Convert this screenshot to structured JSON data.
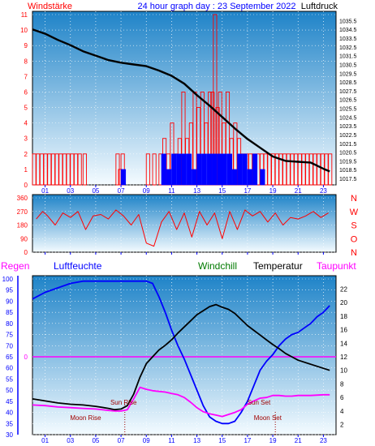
{
  "header": {
    "left_title": "Windstärke",
    "center_title": "24 hour graph day : 23 September 2022",
    "right_title": "Luftdruck"
  },
  "colors": {
    "bg_top": "#1e83c8",
    "bg_bottom": "#f4fbff",
    "wind": "#ff0000",
    "gust": "#0000ff",
    "pressure": "#000000",
    "humidity": "#0000ff",
    "temperature": "#000000",
    "dewpoint": "#ff00ff",
    "windchill": "#007a00",
    "rain": "#ff00ff",
    "axis_red": "#ff0000",
    "axis_blue": "#0000ff",
    "axis_dark": "#000000"
  },
  "chart_data": [
    {
      "type": "bar",
      "title": "",
      "x_ticks": [
        "01",
        "03",
        "05",
        "07",
        "09",
        "11",
        "13",
        "15",
        "17",
        "19",
        "21",
        "23"
      ],
      "left_axis": {
        "label": "Windstärke",
        "ylim": [
          0,
          11
        ],
        "ticks": [
          "0",
          "1",
          "2",
          "3",
          "4",
          "5",
          "6",
          "7",
          "8",
          "9",
          "10",
          "11"
        ]
      },
      "right_axis": {
        "label": "Luftdruck",
        "ylim": [
          1017.5,
          1036
        ],
        "ticks": [
          "1017.5",
          "1018",
          "1018.5",
          "1019",
          "1019.5",
          "1020",
          "1020.5",
          "1021",
          "1021.5",
          "1022",
          "1022.5",
          "1023",
          "1023.5",
          "1024",
          "1024.5",
          "1025",
          "1025.5",
          "1026",
          "1026.5",
          "1027",
          "1027.5",
          "1028",
          "1028.5",
          "1029",
          "1029.5",
          "1030",
          "1030.5",
          "1031",
          "1031.5",
          "1032",
          "1032.5",
          "1033",
          "1033.5",
          "1034",
          "1034.5",
          "1035",
          "1035.5",
          "1036"
        ]
      },
      "series": [
        {
          "name": "Windstärke",
          "kind": "bars",
          "x": [
            0.0,
            0.3,
            0.6,
            0.9,
            1.2,
            1.5,
            1.8,
            2.1,
            2.4,
            2.7,
            3.0,
            3.3,
            3.6,
            4.0,
            6.6,
            6.8,
            7.0,
            9.0,
            9.5,
            10.0,
            10.3,
            10.6,
            10.9,
            11.2,
            11.5,
            11.8,
            12.1,
            12.4,
            12.7,
            13.0,
            13.3,
            13.6,
            13.9,
            14.1,
            14.3,
            14.5,
            14.7,
            15.0,
            15.3,
            15.6,
            15.9,
            16.2,
            16.5,
            16.8,
            17.1,
            17.4,
            17.7,
            18.0,
            18.3,
            18.6,
            18.9,
            19.2,
            19.5,
            19.8,
            20.1,
            20.4,
            20.7,
            21.0,
            21.3,
            21.6,
            21.9,
            22.2,
            22.5,
            22.8,
            23.1,
            23.4
          ],
          "values": [
            2,
            2,
            2,
            2,
            2,
            2,
            2,
            2,
            2,
            2,
            2,
            2,
            2,
            2,
            2,
            1,
            2,
            2,
            2,
            2,
            3,
            2,
            4,
            2,
            3,
            6,
            3,
            4,
            6,
            5,
            6,
            4,
            6,
            6,
            11,
            5,
            6,
            4,
            6,
            3,
            4,
            3,
            2,
            2,
            2,
            2,
            2,
            2,
            2,
            2,
            2,
            2,
            2,
            2,
            2,
            2,
            2,
            2,
            2,
            2,
            2,
            2,
            2,
            2,
            2,
            2
          ]
        },
        {
          "name": "Böen",
          "kind": "bars",
          "x": [
            7.0,
            10.2,
            10.6,
            11.0,
            11.4,
            11.8,
            12.2,
            12.6,
            13.0,
            13.4,
            13.8,
            14.2,
            14.6,
            15.0,
            15.4,
            15.8,
            16.2,
            16.6,
            17.0,
            17.4,
            18.0
          ],
          "values": [
            1,
            2,
            1,
            2,
            2,
            2,
            2,
            1,
            2,
            2,
            2,
            2,
            2,
            2,
            2,
            1,
            2,
            2,
            1,
            2,
            1
          ]
        },
        {
          "name": "Luftdruck",
          "kind": "line",
          "x": [
            0,
            1,
            2,
            3,
            4,
            5,
            6,
            7,
            8,
            9,
            10,
            11,
            12,
            13,
            14,
            15,
            16,
            17,
            18,
            19,
            20,
            21,
            22,
            23,
            23.5
          ],
          "values": [
            1034.5,
            1034.0,
            1033.3,
            1032.7,
            1032.0,
            1031.5,
            1031.0,
            1030.7,
            1030.5,
            1030.3,
            1029.8,
            1029.2,
            1028.3,
            1027.0,
            1025.8,
            1024.5,
            1023.2,
            1022.0,
            1021.0,
            1020.0,
            1019.5,
            1019.4,
            1019.3,
            1018.6,
            1018.3
          ]
        }
      ]
    },
    {
      "type": "line",
      "title": "",
      "x_ticks": [
        "01",
        "03",
        "05",
        "07",
        "09",
        "11",
        "13",
        "15",
        "17",
        "19",
        "21",
        "23"
      ],
      "left_axis": {
        "label": "",
        "ylim": [
          0,
          360
        ],
        "ticks": [
          "0",
          "90",
          "180",
          "270",
          "360"
        ]
      },
      "right_axis_letters": [
        "N",
        "W",
        "S",
        "O",
        "N"
      ],
      "series": [
        {
          "name": "Windrichtung",
          "kind": "line",
          "x": [
            0.3,
            0.8,
            1.2,
            1.8,
            2.4,
            3.0,
            3.6,
            4.2,
            4.8,
            5.4,
            6.0,
            6.6,
            7.2,
            7.8,
            8.4,
            9.0,
            9.6,
            10.2,
            10.8,
            11.4,
            12.0,
            12.6,
            13.2,
            13.8,
            14.4,
            15.0,
            15.6,
            16.2,
            16.8,
            17.4,
            18.0,
            18.6,
            19.2,
            19.8,
            20.4,
            21.0,
            21.6,
            22.2,
            22.8,
            23.4
          ],
          "values": [
            220,
            270,
            240,
            180,
            260,
            230,
            270,
            150,
            240,
            250,
            220,
            280,
            240,
            180,
            250,
            60,
            40,
            200,
            270,
            150,
            260,
            100,
            270,
            180,
            260,
            90,
            270,
            150,
            280,
            240,
            270,
            200,
            260,
            180,
            230,
            220,
            240,
            270,
            230,
            260
          ]
        }
      ]
    },
    {
      "type": "line",
      "title": "",
      "legend": [
        "Regen",
        "Luftfeuchte",
        "Windchill",
        "Temperatur",
        "Taupunkt"
      ],
      "x_ticks": [
        "01",
        "03",
        "05",
        "07",
        "09",
        "11",
        "13",
        "15",
        "17",
        "19",
        "21",
        "23"
      ],
      "left_axis": {
        "label": "Luftfeuchte",
        "ylim": [
          30,
          100
        ],
        "ticks": [
          "30",
          "35",
          "40",
          "45",
          "50",
          "55",
          "60",
          "65",
          "70",
          "75",
          "80",
          "85",
          "90",
          "95",
          "100"
        ]
      },
      "rain_label": "0",
      "right_axis": {
        "label": "Temperatur",
        "ylim": [
          1,
          23
        ],
        "ticks": [
          "2",
          "4",
          "6",
          "8",
          "10",
          "12",
          "14",
          "16",
          "18",
          "20",
          "22"
        ]
      },
      "annotations": [
        "Sun Rise",
        "Sun Set",
        "Moon Rise",
        "Moon Set"
      ],
      "series": [
        {
          "name": "Luftfeuchte",
          "x": [
            0,
            1,
            2,
            3,
            4,
            5,
            6,
            7,
            8,
            9,
            9.5,
            10,
            10.5,
            11,
            11.5,
            12,
            12.5,
            13,
            13.5,
            14,
            14.5,
            15,
            15.5,
            16,
            16.5,
            17,
            17.5,
            18,
            18.5,
            19,
            19.5,
            20,
            20.5,
            21,
            21.5,
            22,
            22.5,
            23,
            23.5
          ],
          "values": [
            91,
            94,
            96,
            98,
            99,
            99,
            99,
            99,
            99,
            99,
            98,
            92,
            85,
            77,
            70,
            64,
            57,
            50,
            43,
            38,
            36,
            35,
            35,
            36,
            40,
            45,
            52,
            59,
            63,
            66,
            70,
            73,
            75,
            76,
            78,
            80,
            83,
            85,
            88
          ]
        },
        {
          "name": "Temperatur",
          "x": [
            0,
            1,
            2,
            3,
            4,
            5,
            6,
            6.5,
            7,
            7.5,
            8,
            8.5,
            9,
            9.5,
            10,
            10.5,
            11,
            11.5,
            12,
            12.5,
            13,
            13.5,
            14,
            14.5,
            15,
            15.5,
            16,
            16.5,
            17,
            17.5,
            18,
            18.5,
            19,
            19.5,
            20,
            20.5,
            21,
            22,
            23,
            23.5
          ],
          "values": [
            5.8,
            5.5,
            5.2,
            5.0,
            4.9,
            4.7,
            4.4,
            4.2,
            4.3,
            4.8,
            6.5,
            9.0,
            11.0,
            12.0,
            13.0,
            13.7,
            14.5,
            15.5,
            16.4,
            17.3,
            18.2,
            18.8,
            19.4,
            19.7,
            19.3,
            19.0,
            18.4,
            17.5,
            16.6,
            15.9,
            15.2,
            14.5,
            13.8,
            13.2,
            12.5,
            12.0,
            11.5,
            10.9,
            10.3,
            10.0
          ]
        },
        {
          "name": "Taupunkt",
          "x": [
            0,
            1,
            2,
            3,
            4,
            5,
            6,
            6.5,
            7,
            7.5,
            8,
            8.5,
            9,
            9.5,
            10,
            10.5,
            11,
            11.5,
            12,
            12.5,
            13,
            13.5,
            14,
            14.5,
            15,
            15.5,
            16,
            16.5,
            17,
            17.5,
            18,
            18.5,
            19,
            19.5,
            20,
            20.5,
            21,
            22,
            23,
            23.5
          ],
          "values": [
            4.9,
            4.8,
            4.6,
            4.5,
            4.4,
            4.3,
            4.1,
            4.0,
            4.0,
            4.2,
            5.8,
            7.5,
            7.2,
            7.0,
            6.9,
            6.8,
            6.6,
            6.4,
            6.0,
            5.3,
            4.5,
            3.9,
            3.6,
            3.4,
            3.2,
            3.5,
            3.8,
            4.2,
            5.0,
            5.5,
            5.9,
            6.0,
            6.3,
            6.3,
            6.2,
            6.2,
            6.3,
            6.3,
            6.4,
            6.4
          ]
        },
        {
          "name": "Regen",
          "x": [
            0,
            23.5
          ],
          "values": [
            0,
            0
          ]
        }
      ]
    }
  ]
}
